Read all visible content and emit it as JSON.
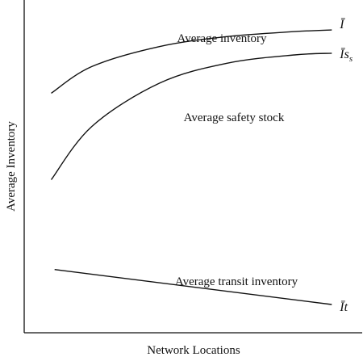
{
  "chart_data": {
    "type": "line",
    "title": "",
    "xlabel": "Network Locations",
    "ylabel": "Average Inventory",
    "xlim": [
      0,
      10
    ],
    "ylim": [
      0,
      10
    ],
    "grid": false,
    "legend": "none",
    "series": [
      {
        "name": "Average inventory",
        "end_label": "Ī",
        "points": [
          [
            0.8,
            7.2
          ],
          [
            2.0,
            8.0
          ],
          [
            4.0,
            8.6
          ],
          [
            6.0,
            8.9
          ],
          [
            8.0,
            9.05
          ],
          [
            9.1,
            9.1
          ]
        ]
      },
      {
        "name": "Average safety stock",
        "end_label": "Īss",
        "points": [
          [
            0.8,
            4.6
          ],
          [
            2.0,
            6.2
          ],
          [
            4.0,
            7.5
          ],
          [
            6.0,
            8.1
          ],
          [
            8.0,
            8.35
          ],
          [
            9.1,
            8.4
          ]
        ]
      },
      {
        "name": "Average transit inventory",
        "end_label": "Īt",
        "points": [
          [
            0.9,
            1.9
          ],
          [
            9.1,
            0.85
          ]
        ]
      }
    ]
  }
}
